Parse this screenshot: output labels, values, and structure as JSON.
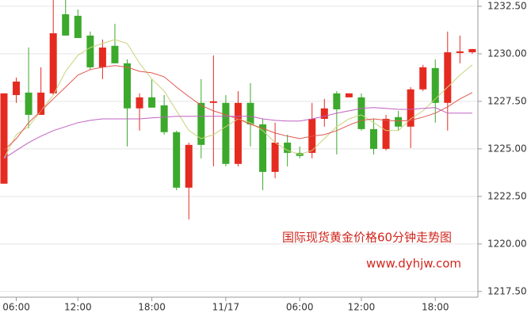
{
  "chart_data": {
    "type": "candlestick",
    "title": "国际现货黄金价格60分钟走势图",
    "annotation": "www.dyhjw.com",
    "categories": [
      null,
      "06:00",
      null,
      null,
      null,
      null,
      "12:00",
      null,
      null,
      null,
      null,
      null,
      "18:00",
      null,
      null,
      null,
      null,
      null,
      "11/17",
      null,
      null,
      null,
      null,
      null,
      "06:00",
      null,
      null,
      null,
      null,
      "12:00",
      null,
      null,
      null,
      null,
      null,
      "18:00",
      null,
      null,
      null
    ],
    "open": [
      1223.17,
      1227.83,
      1227.96,
      1226.79,
      1227.92,
      1232.08,
      1232.0,
      1230.96,
      1229.29,
      1230.42,
      1229.5,
      1227.13,
      1227.71,
      1227.29,
      1225.88,
      1222.96,
      1227.42,
      1227.42,
      1227.42,
      1224.21,
      1227.42,
      1226.29,
      1223.79,
      1225.33,
      1224.79,
      1224.79,
      1226.58,
      1227.92,
      1227.71,
      1227.71,
      1226.04,
      1225.0,
      1226.67,
      1226.17,
      1228.13,
      1229.25,
      1227.42,
      1230.04,
      1230.08
    ],
    "high": [
      1227.92,
      1228.75,
      1230.33,
      1229.29,
      1232.83,
      1232.83,
      1232.33,
      1231.17,
      1230.75,
      1231.58,
      1229.71,
      1227.92,
      1228.67,
      1227.83,
      1225.96,
      1225.33,
      1228.67,
      1229.92,
      1227.83,
      1228.04,
      1228.46,
      1226.58,
      1226.38,
      1225.75,
      1225.13,
      1227.42,
      1227.63,
      1228.04,
      1227.92,
      1227.92,
      1226.58,
      1226.79,
      1227.0,
      1228.25,
      1229.42,
      1229.71,
      1231.17,
      1230.96,
      1230.25
    ],
    "low": [
      1223.17,
      1227.42,
      1226.08,
      1226.79,
      1227.83,
      1230.96,
      1230.83,
      1229.17,
      1228.67,
      1229.5,
      1225.13,
      1225.96,
      1227.17,
      1225.75,
      1222.83,
      1221.29,
      1224.5,
      1224.08,
      1224.08,
      1224.08,
      1225.13,
      1222.83,
      1223.46,
      1224.08,
      1224.5,
      1224.5,
      1226.17,
      1224.71,
      1227.71,
      1225.96,
      1224.71,
      1224.92,
      1225.96,
      1225.04,
      1228.04,
      1226.38,
      1225.96,
      1229.5,
      1230.0
    ],
    "close": [
      1227.92,
      1228.54,
      1226.79,
      1227.96,
      1231.08,
      1230.96,
      1230.83,
      1229.29,
      1230.33,
      1229.5,
      1227.13,
      1227.71,
      1227.17,
      1225.88,
      1222.96,
      1225.21,
      1225.21,
      1227.5,
      1224.21,
      1227.42,
      1226.29,
      1223.79,
      1225.33,
      1224.79,
      1224.63,
      1226.58,
      1227.13,
      1227.08,
      1227.92,
      1226.04,
      1225.0,
      1226.58,
      1226.17,
      1228.13,
      1229.29,
      1227.42,
      1230.08,
      1230.13,
      1230.25
    ],
    "up_color": "#e52a20",
    "down_color": "#3ca92c",
    "lines": [
      {
        "color": "#c9d27a",
        "values": [
          1224.5,
          1225.75,
          1226.17,
          1227.0,
          1227.83,
          1229.08,
          1229.92,
          1230.33,
          1230.54,
          1230.75,
          1230.54,
          1229.5,
          1228.67,
          1228.04,
          1227.0,
          1225.96,
          1225.54,
          1225.75,
          1226.17,
          1226.58,
          1226.38,
          1225.96,
          1225.33,
          1224.92,
          1224.71,
          1224.92,
          1225.54,
          1226.17,
          1226.58,
          1226.79,
          1226.38,
          1225.96,
          1225.96,
          1226.58,
          1227.0,
          1227.63,
          1228.25,
          1228.88,
          1229.42
        ]
      },
      {
        "color": "#e0574f",
        "values": [
          1224.92,
          1225.54,
          1226.38,
          1227.0,
          1227.63,
          1228.25,
          1228.88,
          1229.17,
          1229.29,
          1229.38,
          1229.29,
          1229.08,
          1229.0,
          1228.79,
          1228.25,
          1227.75,
          1227.29,
          1227.0,
          1226.79,
          1226.58,
          1226.29,
          1226.08,
          1225.83,
          1225.67,
          1225.54,
          1225.67,
          1225.75,
          1225.96,
          1226.25,
          1226.5,
          1226.58,
          1226.5,
          1226.46,
          1226.5,
          1226.67,
          1226.88,
          1227.21,
          1227.63,
          1227.96
        ]
      },
      {
        "color": "#c060c0",
        "values": [
          1224.5,
          1224.92,
          1225.33,
          1225.67,
          1225.96,
          1226.17,
          1226.38,
          1226.5,
          1226.58,
          1226.58,
          1226.58,
          1226.58,
          1226.63,
          1226.67,
          1226.71,
          1226.71,
          1226.71,
          1226.71,
          1226.71,
          1226.71,
          1226.71,
          1226.58,
          1226.5,
          1226.46,
          1226.46,
          1226.58,
          1226.71,
          1226.88,
          1227.0,
          1227.13,
          1227.17,
          1227.13,
          1227.08,
          1227.08,
          1227.13,
          1227.17,
          1226.88,
          1226.88,
          1226.88
        ]
      }
    ],
    "ylim": [
      1217.2,
      1232.83
    ],
    "yticks": [
      {
        "value": 1217.5,
        "label": "1217.50"
      },
      {
        "value": 1220,
        "label": "1220.00"
      },
      {
        "value": 1222.5,
        "label": "1222.50"
      },
      {
        "value": 1225,
        "label": "1225.00"
      },
      {
        "value": 1227.5,
        "label": "1227.50"
      },
      {
        "value": 1230,
        "label": "1230.00"
      },
      {
        "value": 1232.5,
        "label": "1232.50"
      }
    ],
    "grid": true
  }
}
